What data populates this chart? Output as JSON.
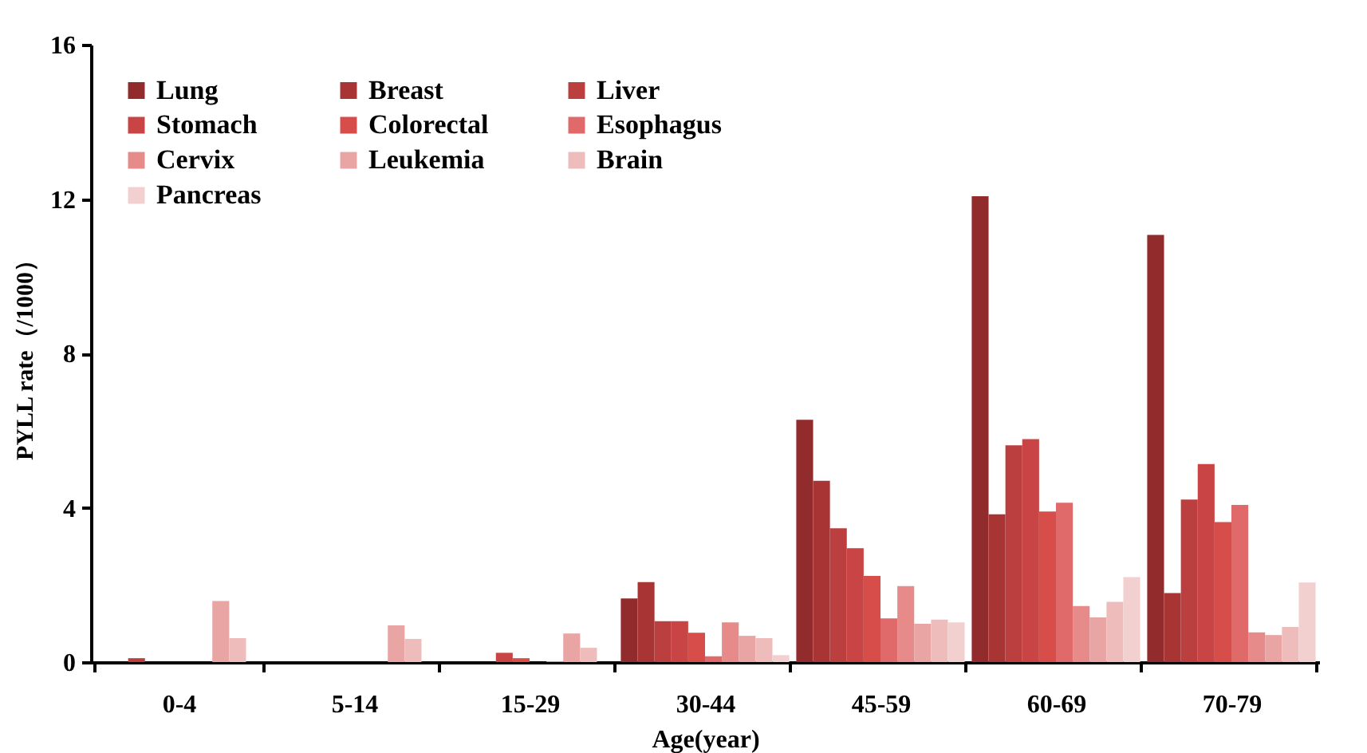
{
  "chart_data": {
    "type": "bar",
    "xlabel": "Age(year)",
    "ylabel": "PYLL rate（/1000）",
    "categories": [
      "0-4",
      "5-14",
      "15-29",
      "30-44",
      "45-59",
      "60-69",
      "70-79"
    ],
    "ylim": [
      0,
      16
    ],
    "yticks": [
      0,
      4,
      8,
      12,
      16
    ],
    "grid": false,
    "legend": "top left",
    "series": [
      {
        "name": "Lung",
        "color": "#922b2b",
        "values": [
          0,
          0,
          0,
          1.65,
          6.28,
          12.07,
          11.07
        ]
      },
      {
        "name": "Breast",
        "color": "#a83434",
        "values": [
          0,
          0,
          0,
          2.07,
          4.7,
          3.83,
          1.79
        ]
      },
      {
        "name": "Liver",
        "color": "#bb3f3f",
        "values": [
          0.1,
          0,
          0,
          1.06,
          3.47,
          5.62,
          4.21
        ]
      },
      {
        "name": "Stomach",
        "color": "#c94545",
        "values": [
          0,
          0,
          0.24,
          1.06,
          2.95,
          5.78,
          5.13
        ]
      },
      {
        "name": "Colorectal",
        "color": "#d64d4a",
        "values": [
          0,
          0,
          0.1,
          0.76,
          2.23,
          3.9,
          3.63
        ]
      },
      {
        "name": "Esophagus",
        "color": "#e06a6a",
        "values": [
          0,
          0,
          0,
          0.15,
          1.13,
          4.13,
          4.07
        ]
      },
      {
        "name": "Cervix",
        "color": "#e68a8a",
        "values": [
          0,
          0,
          0.02,
          1.03,
          1.97,
          1.45,
          0.77
        ]
      },
      {
        "name": "Leukemia",
        "color": "#e9a4a4",
        "values": [
          1.58,
          0.95,
          0.74,
          0.68,
          0.99,
          1.16,
          0.7
        ]
      },
      {
        "name": "Brain",
        "color": "#efbcbc",
        "values": [
          0.62,
          0.6,
          0.37,
          0.62,
          1.1,
          1.56,
          0.91
        ]
      },
      {
        "name": "Pancreas",
        "color": "#f2d0d0",
        "values": [
          0,
          0,
          0,
          0.18,
          1.03,
          2.2,
          2.06
        ]
      }
    ]
  }
}
